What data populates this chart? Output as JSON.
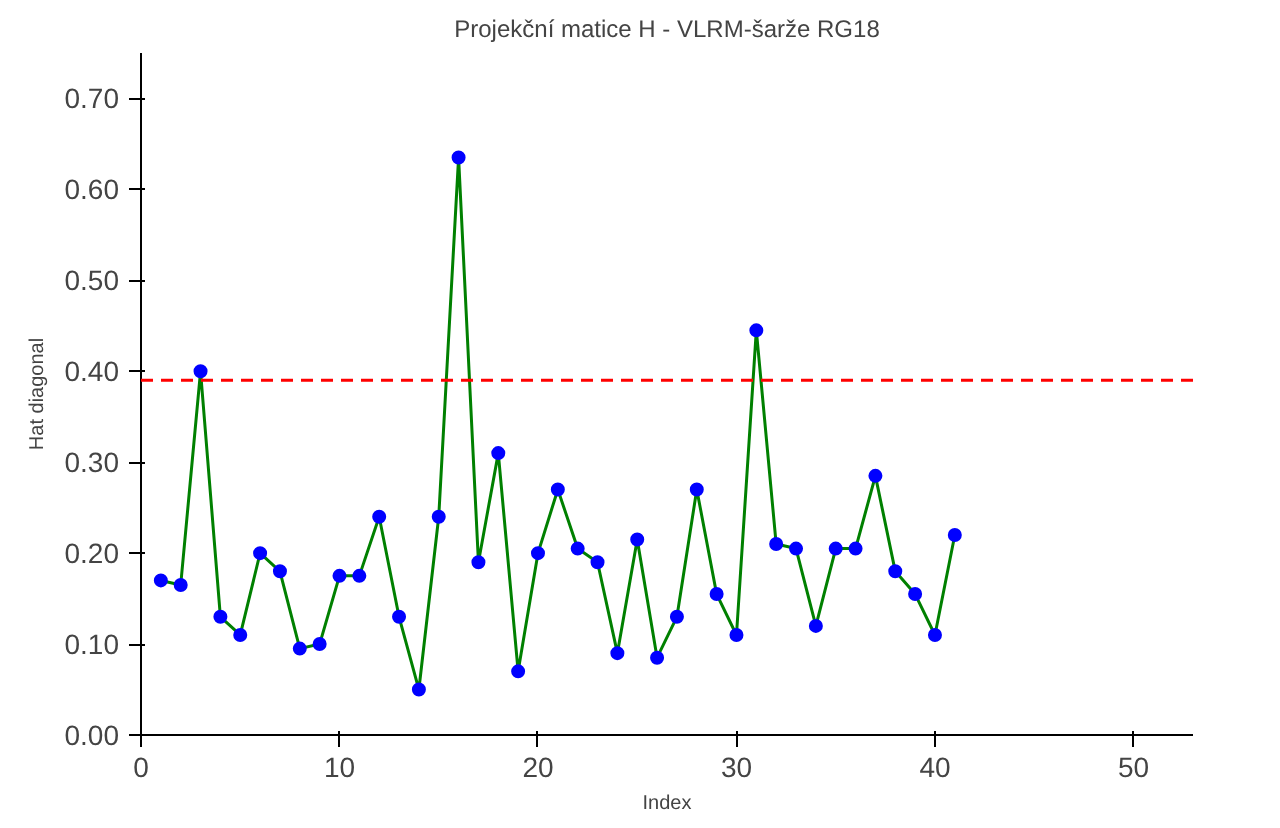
{
  "chart_data": {
    "type": "line",
    "title": "Projekční matice H - VLRM-šarže RG18",
    "xlabel": "Index",
    "ylabel": "Hat diagonal",
    "x": [
      1,
      2,
      3,
      4,
      5,
      6,
      7,
      8,
      9,
      10,
      11,
      12,
      13,
      14,
      15,
      16,
      17,
      18,
      19,
      20,
      21,
      22,
      23,
      24,
      25,
      26,
      27,
      28,
      29,
      30,
      31,
      32,
      33,
      34,
      35,
      36,
      37,
      38,
      39,
      40,
      41
    ],
    "series": [
      {
        "color": "#008000",
        "values": [
          0.17,
          0.165,
          0.4,
          0.13,
          0.11,
          0.2,
          0.18,
          0.095,
          0.1,
          0.175,
          0.175,
          0.24,
          0.13,
          0.05,
          0.24,
          0.635,
          0.19,
          0.31,
          0.07,
          0.2,
          0.27,
          0.205,
          0.19,
          0.09,
          0.215,
          0.085,
          0.13,
          0.27,
          0.155,
          0.11,
          0.445,
          0.21,
          0.205,
          0.12,
          0.205,
          0.205,
          0.285,
          0.18,
          0.155,
          0.11,
          0.22
        ],
        "colors": [
          "#0000ff",
          "#0000ff",
          "#0000ff",
          "#0000ff",
          "#0000ff",
          "#0000ff",
          "#0000ff",
          "#0000ff",
          "#0000ff",
          "#0000ff",
          "#0000ff",
          "#0000ff",
          "#0000ff",
          "#0000ff",
          "#0000ff",
          "#0000ff",
          "#0000ff",
          "#0000ff",
          "#0000ff",
          "#0000ff",
          "#0000ff",
          "#0000ff",
          "#0000ff",
          "#0000ff",
          "#0000ff",
          "#0000ff",
          "#0000ff",
          "#0000ff",
          "#0000ff",
          "#0000ff",
          "#0000ff",
          "#0000ff",
          "#0000ff",
          "#0000ff",
          "#0000ff",
          "#0000ff",
          "#0000ff",
          "#0000ff",
          "#0000ff",
          "#0000ff",
          "#0000ff"
        ]
      }
    ],
    "marker": "circle",
    "line_style": "solid",
    "xlim": [
      0,
      53
    ],
    "ylim": [
      0,
      0.75
    ],
    "xticks": [
      0,
      10,
      20,
      30,
      40,
      50
    ],
    "yticks": [
      {
        "value": 0,
        "label": "0.00"
      },
      {
        "value": 0.1,
        "label": "0.10"
      },
      {
        "value": 0.2,
        "label": "0.20"
      },
      {
        "value": 0.3,
        "label": "0.30"
      },
      {
        "value": 0.4,
        "label": "0.40"
      },
      {
        "value": 0.5,
        "label": "0.50"
      },
      {
        "value": 0.6,
        "label": "0.60"
      },
      {
        "value": 0.7,
        "label": "0.70"
      }
    ],
    "ref_lines": [
      {
        "axis": "y",
        "value": 0.39,
        "color": "#ff0000",
        "line_style": "dashed"
      }
    ],
    "grid": false
  }
}
